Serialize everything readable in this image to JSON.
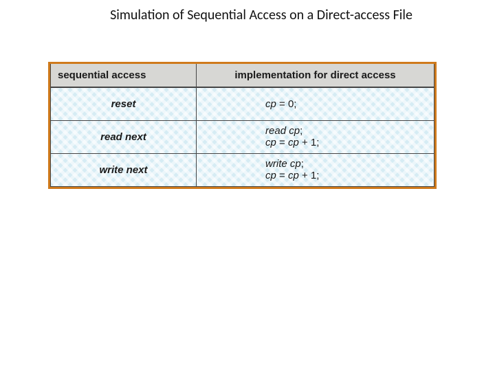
{
  "title": "Simulation of Sequential Access on a Direct-access File",
  "table": {
    "border_color": "#cf7a1c",
    "header_bg": "#d7d7d4",
    "body_bg": "#d6ecf4",
    "text_color": "#1a1a1a",
    "font_size_pt": 15,
    "columns": [
      {
        "key": "seq",
        "label": "sequential access",
        "width_pct": 38
      },
      {
        "key": "impl",
        "label": "implementation for direct access",
        "width_pct": 62
      }
    ],
    "rows": [
      {
        "seq": "reset",
        "impl": [
          {
            "pre": "",
            "ital": "cp",
            "post": " = 0;"
          }
        ]
      },
      {
        "seq": "read next",
        "impl": [
          {
            "pre": "",
            "ital": "read cp",
            "post": ";"
          },
          {
            "pre": "",
            "ital": "cp",
            "post": " = ",
            "ital2": "cp",
            "post2": " + 1;"
          }
        ]
      },
      {
        "seq": "write next",
        "impl": [
          {
            "pre": "",
            "ital": "write cp",
            "post": ";"
          },
          {
            "pre": "",
            "ital": "cp",
            "post": " = ",
            "ital2": "cp",
            "post2": " + 1;"
          }
        ]
      }
    ]
  }
}
